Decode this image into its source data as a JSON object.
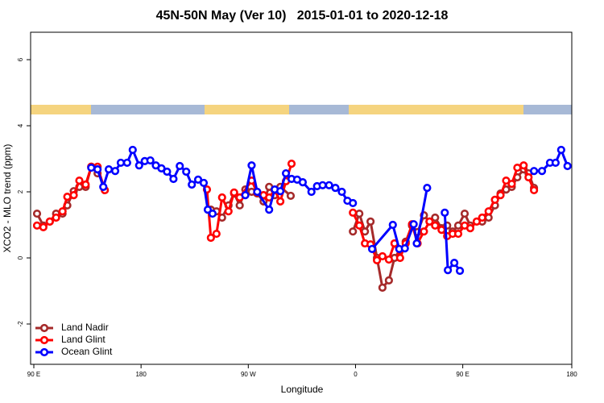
{
  "chart_data": {
    "type": "line",
    "title": "45N-50N May (Ver 10)   2015-01-01 to 2020-12-18",
    "x_label": "Longitude",
    "y_label": "XCO2 - MLO trend (ppm)",
    "xlim": [
      87.3,
      541.5
    ],
    "xticks": [
      {
        "value": 90,
        "label": "90 E"
      },
      180,
      {
        "value": 270,
        "label": "90 W"
      },
      {
        "value": 360,
        "label": "0"
      },
      {
        "value": 450,
        "label": "90 E"
      },
      180.0001
    ],
    "ylim": [
      -3.22,
      6.83
    ],
    "yticks": [
      -2,
      0,
      2,
      4,
      6
    ],
    "legend": "bottom-left",
    "series": [
      {
        "name": "Land Nadir",
        "color": "#a52a2a",
        "x": [
          92.7,
          98,
          103.4,
          108.7,
          114.1,
          118.1,
          123.5,
          128.2,
          133.5,
          138.2,
          143.5,
          null,
          238.6,
          243.3,
          248,
          253.4,
          258.1,
          262.8,
          267.5,
          272.8,
          277.5,
          282.8,
          287.5,
          292.2,
          296.9,
          305.6,
          null,
          357.8,
          363.2,
          367.9,
          372.6,
          378,
          382.6,
          388,
          392.7,
          397.4,
          402.1,
          407.4,
          412.1,
          417.4,
          422.1,
          426.8,
          432.2,
          436.9,
          441.5,
          446.2,
          451.6,
          456.3,
          466.3,
          471.7,
          477,
          481.7,
          486.4,
          491.1,
          495.8,
          501.1,
          505.2,
          509.8
        ],
        "values": [
          1.34,
          0.98,
          1.1,
          1.34,
          1.34,
          1.59,
          2.02,
          2.15,
          2.15,
          2.76,
          2.56,
          null,
          1.46,
          1.41,
          1.22,
          1.59,
          1.95,
          1.59,
          2.07,
          2.0,
          1.95,
          1.71,
          2.15,
          1.9,
          2.15,
          1.88,
          null,
          0.8,
          1.34,
          0.8,
          1.1,
          0,
          -0.9,
          -0.68,
          0,
          0.24,
          0.49,
          0.98,
          0.78,
          1.29,
          1.1,
          1.22,
          0.9,
          0.98,
          0.8,
          0.98,
          1.34,
          0.98,
          1.1,
          1.22,
          1.59,
          1.95,
          2.07,
          2.15,
          2.44,
          2.68,
          2.56,
          2.12
        ]
      },
      {
        "name": "Land Glint",
        "color": "#ff0000",
        "x": [
          92.7,
          98,
          103.4,
          108.7,
          114.1,
          118.1,
          123.5,
          128.2,
          133.5,
          138.2,
          143.5,
          149.6,
          null,
          235.3,
          238.6,
          243.3,
          248,
          253.4,
          258.1,
          262.8,
          272.8,
          277.5,
          282.8,
          287.5,
          292.2,
          296.9,
          301.6,
          306.3,
          null,
          357.8,
          363.2,
          367.9,
          372.6,
          378,
          382.6,
          388,
          392.7,
          397.4,
          402.1,
          407.4,
          412.1,
          417.4,
          422.1,
          426.8,
          432.2,
          436.9,
          441.5,
          446.2,
          451.6,
          456.3,
          461.7,
          466.3,
          471.7,
          477,
          481.7,
          486.4,
          491.1,
          495.8,
          501.1,
          505.2,
          509.8
        ],
        "values": [
          0.98,
          0.93,
          1.1,
          1.22,
          1.41,
          1.85,
          1.9,
          2.34,
          2.22,
          2.76,
          2.76,
          2.05,
          null,
          2.07,
          0.61,
          0.73,
          1.83,
          1.41,
          1.98,
          1.83,
          2.34,
          1.98,
          1.9,
          1.83,
          2.05,
          1.71,
          2.32,
          2.85,
          null,
          1.37,
          0.98,
          0.44,
          0.41,
          -0.07,
          0.05,
          -0.05,
          0.44,
          0,
          0.44,
          1.02,
          0.44,
          0.8,
          1.1,
          0.98,
          0.85,
          0.66,
          0.73,
          0.73,
          0.98,
          0.9,
          1.1,
          1.22,
          1.41,
          1.76,
          1.9,
          2.34,
          2.24,
          2.73,
          2.8,
          2.44,
          2.05
        ]
      },
      {
        "name": "Ocean Glint",
        "color": "#0000ff",
        "x": [
          138.2,
          143.5,
          148.3,
          152.9,
          158.3,
          163,
          168.3,
          173,
          178.4,
          183.1,
          187.8,
          192.4,
          197.1,
          201.8,
          207.2,
          212.5,
          217.9,
          222.6,
          227.9,
          232.6,
          236,
          240,
          null,
          267.5,
          272.8,
          277.5,
          287.5,
          292.2,
          296.9,
          301.6,
          306.3,
          311,
          315.7,
          323,
          327.7,
          332.4,
          337.8,
          343.1,
          348.5,
          353.2,
          357.8,
          null,
          373.9,
          391.3,
          396.7,
          401.4,
          408.8,
          411.4,
          420.1,
          null,
          434.9,
          437.5,
          442.9,
          447.6,
          null,
          509.8,
          516.5,
          523.2,
          527.9,
          532.6,
          537.9
        ],
        "values": [
          2.73,
          2.68,
          2.15,
          2.68,
          2.63,
          2.88,
          2.88,
          3.27,
          2.8,
          2.93,
          2.95,
          2.8,
          2.71,
          2.61,
          2.39,
          2.78,
          2.61,
          2.22,
          2.37,
          2.27,
          1.46,
          1.34,
          null,
          1.9,
          2.8,
          2.0,
          1.46,
          2.07,
          2.02,
          2.56,
          2.39,
          2.37,
          2.29,
          2.0,
          2.17,
          2.2,
          2.2,
          2.12,
          2.0,
          1.73,
          1.66,
          null,
          0.27,
          1.0,
          0.27,
          0.29,
          1.02,
          0.44,
          2.12,
          null,
          1.37,
          -0.37,
          -0.15,
          -0.39,
          null,
          2.63,
          2.63,
          2.88,
          2.88,
          3.27,
          2.78
        ]
      }
    ]
  }
}
